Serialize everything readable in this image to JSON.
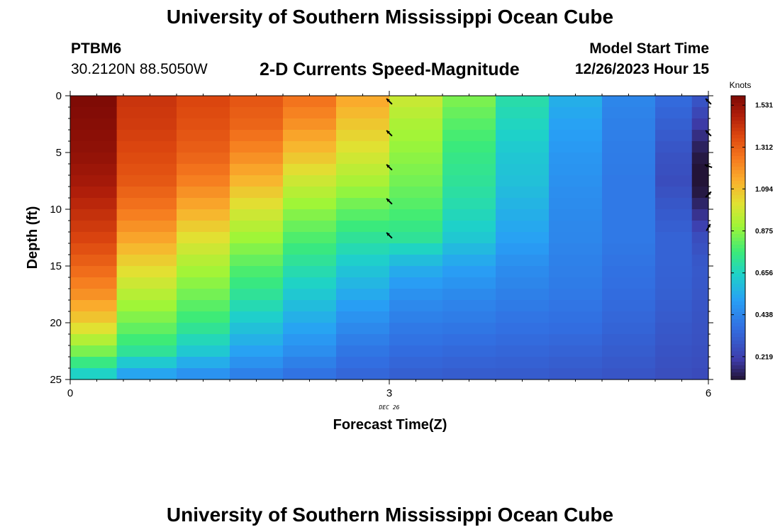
{
  "page": {
    "title": "University of Southern Mississippi Ocean Cube",
    "title_bottom": "University of Southern Mississippi Ocean Cube",
    "station_id": "PTBM6",
    "station_coords": "30.2120N  88.5050W",
    "model_start_label": "Model Start Time",
    "model_start_value": "12/26/2023 Hour 15",
    "subtitle": "2-D Currents Speed-Magnitude"
  },
  "chart_data": {
    "type": "heatmap",
    "title": "2-D Currents Speed-Magnitude",
    "xlabel": "Forecast Time(Z)",
    "ylabel": "Depth (ft)",
    "xlim": [
      0,
      6
    ],
    "ylim": [
      0,
      25
    ],
    "y_inverted": true,
    "x_ticks": [
      0,
      3,
      6
    ],
    "x_tick_labels": [
      "0",
      "3",
      "6"
    ],
    "y_ticks": [
      0,
      5,
      10,
      15,
      20,
      25
    ],
    "y_tick_labels": [
      "0",
      "5",
      "10",
      "15",
      "20",
      "25"
    ],
    "x_date_label": "DEC 26",
    "x_date_at": 3,
    "colorbar": {
      "label": "Knots",
      "vmin": 0.1,
      "vmax": 1.58,
      "tick_values": [
        0.219,
        0.438,
        0.656,
        0.875,
        1.094,
        1.312,
        1.531
      ],
      "tick_labels": [
        "0.219",
        "0.438",
        "0.656",
        "0.875",
        "1.094",
        "1.312",
        "1.531"
      ]
    },
    "column_x": [
      0.125,
      0.75,
      1.25,
      1.75,
      2.25,
      2.75,
      3.25,
      3.75,
      4.25,
      4.75,
      5.25,
      5.75,
      5.94
    ],
    "depth_levels": [
      0,
      2.5,
      5,
      7.5,
      10,
      12.5,
      15,
      17.5,
      20,
      22.5,
      25
    ],
    "speed_profiles": [
      [
        1.58,
        1.56,
        1.54,
        1.5,
        1.44,
        1.38,
        1.3,
        1.2,
        1.06,
        0.85,
        0.6
      ],
      [
        1.42,
        1.4,
        1.37,
        1.33,
        1.26,
        1.16,
        1.04,
        0.94,
        0.84,
        0.72,
        0.48
      ],
      [
        1.38,
        1.35,
        1.31,
        1.24,
        1.14,
        1.02,
        0.92,
        0.84,
        0.75,
        0.62,
        0.44
      ],
      [
        1.34,
        1.3,
        1.22,
        1.12,
        1.0,
        0.9,
        0.8,
        0.72,
        0.62,
        0.52,
        0.4
      ],
      [
        1.28,
        1.2,
        1.1,
        0.98,
        0.88,
        0.79,
        0.7,
        0.62,
        0.54,
        0.46,
        0.36
      ],
      [
        1.16,
        1.08,
        1.0,
        0.92,
        0.82,
        0.72,
        0.62,
        0.54,
        0.46,
        0.39,
        0.33
      ],
      [
        0.98,
        0.92,
        0.88,
        0.84,
        0.79,
        0.72,
        0.56,
        0.47,
        0.41,
        0.36,
        0.31
      ],
      [
        0.86,
        0.8,
        0.75,
        0.72,
        0.68,
        0.62,
        0.52,
        0.45,
        0.4,
        0.35,
        0.3
      ],
      [
        0.7,
        0.66,
        0.62,
        0.6,
        0.56,
        0.52,
        0.46,
        0.42,
        0.38,
        0.34,
        0.3
      ],
      [
        0.56,
        0.52,
        0.49,
        0.47,
        0.45,
        0.44,
        0.42,
        0.4,
        0.37,
        0.33,
        0.29
      ],
      [
        0.44,
        0.42,
        0.41,
        0.4,
        0.4,
        0.4,
        0.38,
        0.36,
        0.34,
        0.31,
        0.28
      ],
      [
        0.36,
        0.32,
        0.28,
        0.26,
        0.3,
        0.33,
        0.33,
        0.32,
        0.3,
        0.28,
        0.26
      ],
      [
        0.3,
        0.2,
        0.12,
        0.08,
        0.16,
        0.26,
        0.3,
        0.29,
        0.28,
        0.27,
        0.25
      ]
    ],
    "vectors": [
      {
        "x": 3,
        "depth": 0.5,
        "angle_deg": 225
      },
      {
        "x": 3,
        "depth": 3.3,
        "angle_deg": 225
      },
      {
        "x": 3,
        "depth": 6.3,
        "angle_deg": 225
      },
      {
        "x": 3,
        "depth": 9.3,
        "angle_deg": 225
      },
      {
        "x": 3,
        "depth": 12.3,
        "angle_deg": 225
      },
      {
        "x": 6,
        "depth": 0.5,
        "angle_deg": 225
      },
      {
        "x": 6,
        "depth": 3.3,
        "angle_deg": 225
      },
      {
        "x": 6,
        "depth": 6.2,
        "angle_deg": 200
      },
      {
        "x": 6,
        "depth": 8.7,
        "angle_deg": 315
      },
      {
        "x": 6,
        "depth": 11.6,
        "angle_deg": 300
      }
    ],
    "colors": {
      "axis": "#000000",
      "arrow": "#000000"
    }
  }
}
